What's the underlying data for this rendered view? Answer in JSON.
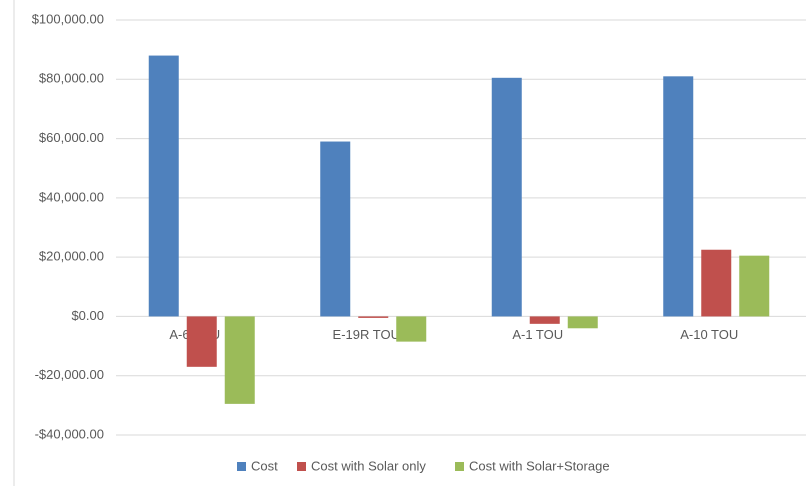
{
  "chart_data": {
    "type": "bar",
    "categories": [
      "A-6 TOU",
      "E-19R TOU",
      "A-1 TOU",
      "A-10 TOU"
    ],
    "series": [
      {
        "name": "Cost",
        "color": "#4f81bd",
        "values": [
          88000,
          59000,
          80500,
          81000
        ]
      },
      {
        "name": "Cost with Solar only",
        "color": "#c0504d",
        "values": [
          -17000,
          -500,
          -2500,
          22500
        ]
      },
      {
        "name": "Cost with Solar+Storage",
        "color": "#9bbb59",
        "values": [
          -29500,
          -8500,
          -4000,
          20500
        ]
      }
    ],
    "ylim": [
      -40000,
      100000
    ],
    "yticks": [
      {
        "value": -40000,
        "label": "-$40,000.00"
      },
      {
        "value": -20000,
        "label": "-$20,000.00"
      },
      {
        "value": 0,
        "label": "$0.00"
      },
      {
        "value": 20000,
        "label": "$20,000.00"
      },
      {
        "value": 40000,
        "label": "$40,000.00"
      },
      {
        "value": 60000,
        "label": "$60,000.00"
      },
      {
        "value": 80000,
        "label": "$80,000.00"
      },
      {
        "value": 100000,
        "label": "$100,000.00"
      }
    ],
    "grid": true,
    "legend": "bottom"
  }
}
